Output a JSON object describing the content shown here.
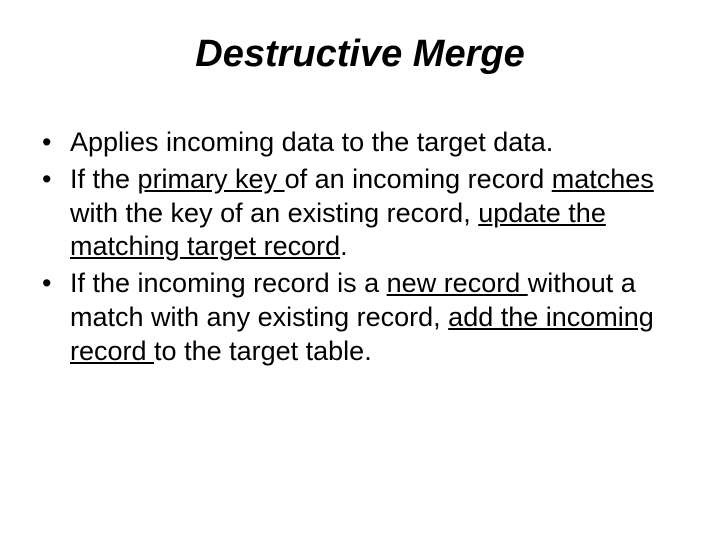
{
  "slide": {
    "title": "Destructive Merge",
    "bullets": [
      {
        "segments": [
          {
            "text": "Applies incoming data to the target data.",
            "underline": false
          }
        ]
      },
      {
        "segments": [
          {
            "text": "If the ",
            "underline": false
          },
          {
            "text": "primary key ",
            "underline": true
          },
          {
            "text": "of an incoming record ",
            "underline": false
          },
          {
            "text": "matches ",
            "underline": true
          },
          {
            "text": "with the key of an existing record, ",
            "underline": false
          },
          {
            "text": "update the matching target record",
            "underline": true
          },
          {
            "text": ".",
            "underline": false
          }
        ]
      },
      {
        "segments": [
          {
            "text": "If the incoming record is a ",
            "underline": false
          },
          {
            "text": "new record ",
            "underline": true
          },
          {
            "text": "without a match with any existing record, ",
            "underline": false
          },
          {
            "text": "add the incoming record ",
            "underline": true
          },
          {
            "text": "to the target table.",
            "underline": false
          }
        ]
      }
    ]
  },
  "styling": {
    "background_color": "#ffffff",
    "text_color": "#000000",
    "title_fontsize": 38,
    "title_weight": "bold",
    "title_style": "italic",
    "body_fontsize": 27,
    "font_family": "Arial"
  }
}
